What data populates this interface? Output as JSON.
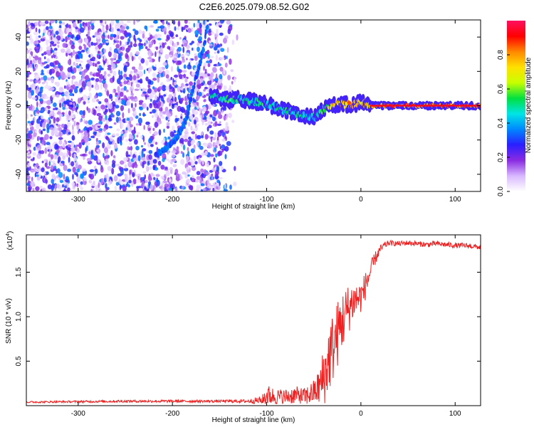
{
  "figure_title": "C2E6.2025.079.08.52.G02",
  "chart_data": [
    {
      "type": "heatmap",
      "title": "C2E6.2025.079.08.52.G02",
      "xlabel": "Height of straight line (km)",
      "ylabel": "Frequency (Hz)",
      "xlim": [
        -355,
        127
      ],
      "ylim": [
        -50,
        50
      ],
      "x_ticks": [
        -300,
        -200,
        -100,
        0,
        100
      ],
      "x_tick_labels": [
        "-300",
        "-200",
        "-100",
        "0",
        "100"
      ],
      "y_ticks": [
        -40,
        -20,
        0,
        20,
        40
      ],
      "y_tick_labels": [
        "-40",
        "-20",
        "0",
        "20",
        "40"
      ],
      "colorbar": {
        "label": "Normalized spectral amplitude",
        "range": [
          0,
          1
        ],
        "ticks": [
          0.0,
          0.2,
          0.4,
          0.6,
          0.8
        ],
        "tick_labels": [
          "0.0",
          "0.2",
          "0.4",
          "0.6",
          "0.8"
        ],
        "colors": [
          "#ffffff",
          "#d8b8ff",
          "#8a2be2",
          "#2a1fff",
          "#0088ff",
          "#00e5e5",
          "#00e040",
          "#c8ff00",
          "#ffe000",
          "#ff8800",
          "#ff0000",
          "#ff1060"
        ]
      },
      "ridge": {
        "x": [
          -160,
          -150,
          -140,
          -130,
          -120,
          -110,
          -100,
          -90,
          -80,
          -70,
          -60,
          -50,
          -45,
          -40,
          -30,
          -20,
          -10,
          0,
          10,
          50,
          100,
          127
        ],
        "y": [
          6,
          5,
          3,
          4,
          3,
          2,
          1,
          -1,
          -3,
          -4,
          -6,
          -7,
          -5,
          -2,
          0,
          1,
          0.5,
          2,
          0,
          0,
          0,
          0
        ],
        "amplitude": [
          0.45,
          0.5,
          0.55,
          0.55,
          0.5,
          0.5,
          0.55,
          0.5,
          0.5,
          0.5,
          0.45,
          0.4,
          0.45,
          0.6,
          0.8,
          0.9,
          0.9,
          0.8,
          0.95,
          0.95,
          0.95,
          0.95
        ]
      },
      "trend": {
        "x": [
          -215,
          -205,
          -195,
          -185,
          -178,
          -172,
          -166,
          -162
        ],
        "y": [
          -28,
          -24,
          -18,
          -8,
          10,
          22,
          36,
          50
        ]
      },
      "noise_region": {
        "x": [
          -355,
          -130
        ],
        "y": [
          -50,
          50
        ]
      }
    },
    {
      "type": "line",
      "title": "",
      "xlabel": "Height of straight line (km)",
      "ylabel": "SNR (10 * v/v)",
      "y_multiplier_label": "(x10",
      "y_multiplier_exp": "4",
      "y_multiplier_close": ")",
      "xlim": [
        -355,
        127
      ],
      "ylim": [
        0,
        1.92
      ],
      "x_ticks": [
        -300,
        -200,
        -100,
        0,
        100
      ],
      "x_tick_labels": [
        "-300",
        "-200",
        "-100",
        "0",
        "100"
      ],
      "y_ticks": [
        0.5,
        1.0,
        1.5
      ],
      "y_tick_labels": [
        "0.5",
        "1.0",
        "1.5"
      ],
      "series": [
        {
          "color": "#ee2020",
          "x": [
            -355,
            -300,
            -250,
            -200,
            -150,
            -120,
            -105,
            -100,
            -90,
            -80,
            -70,
            -60,
            -50,
            -45,
            -40,
            -35,
            -30,
            -25,
            -20,
            -15,
            -10,
            -5,
            0,
            5,
            10,
            15,
            20,
            25,
            30,
            40,
            50,
            60,
            70,
            80,
            90,
            100,
            110,
            120,
            127
          ],
          "y": [
            0.04,
            0.045,
            0.05,
            0.05,
            0.05,
            0.05,
            0.06,
            0.12,
            0.1,
            0.1,
            0.12,
            0.1,
            0.15,
            0.2,
            0.3,
            0.5,
            0.65,
            0.8,
            0.95,
            1.05,
            1.15,
            1.2,
            1.22,
            1.35,
            1.5,
            1.65,
            1.75,
            1.8,
            1.83,
            1.82,
            1.83,
            1.82,
            1.81,
            1.82,
            1.81,
            1.8,
            1.8,
            1.79,
            1.78
          ],
          "noise": [
            0.01,
            0.012,
            0.015,
            0.015,
            0.015,
            0.02,
            0.05,
            0.12,
            0.09,
            0.09,
            0.1,
            0.1,
            0.14,
            0.2,
            0.35,
            0.4,
            0.4,
            0.38,
            0.35,
            0.3,
            0.25,
            0.2,
            0.18,
            0.16,
            0.12,
            0.08,
            0.05,
            0.04,
            0.03,
            0.03,
            0.03,
            0.03,
            0.03,
            0.03,
            0.03,
            0.03,
            0.03,
            0.03,
            0.03
          ]
        }
      ]
    }
  ]
}
